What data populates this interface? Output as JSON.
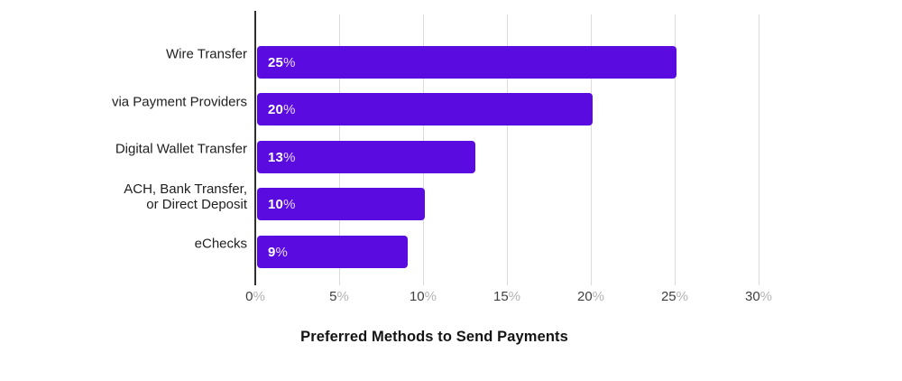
{
  "chart_data": {
    "type": "bar",
    "orientation": "horizontal",
    "title": "Preferred Methods to Send Payments",
    "categories": [
      "Wire Transfer",
      "via Payment Providers",
      "Digital Wallet Transfer",
      "ACH, Bank Transfer,\nor Direct Deposit",
      "eChecks"
    ],
    "values": [
      25,
      20,
      13,
      10,
      9
    ],
    "value_labels": [
      {
        "num": "25",
        "suffix": "%"
      },
      {
        "num": "20",
        "suffix": "%"
      },
      {
        "num": "13",
        "suffix": "%"
      },
      {
        "num": "10",
        "suffix": "%"
      },
      {
        "num": "9",
        "suffix": "%"
      }
    ],
    "xlabel": "",
    "ylabel": "",
    "xlim": [
      0,
      30
    ],
    "x_ticks": [
      {
        "num": "0",
        "suffix": "%"
      },
      {
        "num": "5",
        "suffix": "%"
      },
      {
        "num": "10",
        "suffix": "%"
      },
      {
        "num": "15",
        "suffix": "%"
      },
      {
        "num": "20",
        "suffix": "%"
      },
      {
        "num": "25",
        "suffix": "%"
      },
      {
        "num": "30",
        "suffix": "%"
      }
    ],
    "grid": "vertical-gridlines-on",
    "legend": "none",
    "colors": {
      "bar": "#5a0be0",
      "bar_label": "#ffffff",
      "axis_line": "#2f2f2f",
      "gridline": "#dadada",
      "category_label": "#1e1e1e",
      "tick_number": "#404040",
      "tick_suffix": "#b3b3b3",
      "title": "#141414",
      "background": "#ffffff"
    }
  }
}
